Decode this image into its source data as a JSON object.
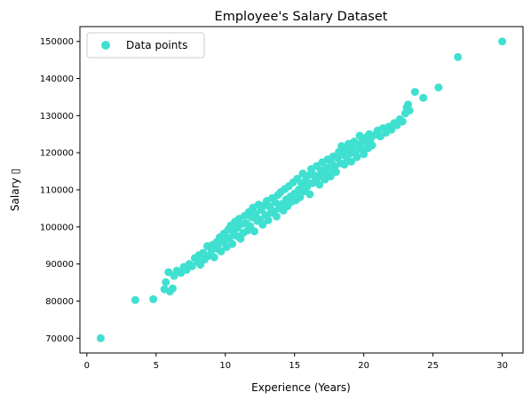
{
  "chart_data": {
    "type": "scatter",
    "title": "Employee's Salary Dataset",
    "xlabel": "Experience (Years)",
    "ylabel": "Salary ▯",
    "xlim": [
      -0.5,
      31.5
    ],
    "ylim": [
      66000,
      154000
    ],
    "xticks": [
      0,
      5,
      10,
      15,
      20,
      25,
      30
    ],
    "yticks": [
      70000,
      80000,
      90000,
      100000,
      110000,
      120000,
      130000,
      140000,
      150000
    ],
    "grid": false,
    "legend_position": "top-left",
    "series": [
      {
        "name": "Data points",
        "color": "#40e0d0",
        "marker": "circle",
        "points": [
          [
            1,
            70000
          ],
          [
            3.5,
            80300
          ],
          [
            4.8,
            80500
          ],
          [
            5.6,
            83200
          ],
          [
            5.7,
            85100
          ],
          [
            5.9,
            87800
          ],
          [
            6.0,
            82600
          ],
          [
            6.2,
            83400
          ],
          [
            6.3,
            86800
          ],
          [
            6.5,
            88200
          ],
          [
            6.8,
            87600
          ],
          [
            7.0,
            89200
          ],
          [
            7.2,
            88400
          ],
          [
            7.4,
            90000
          ],
          [
            7.6,
            89400
          ],
          [
            7.8,
            91600
          ],
          [
            8.0,
            90600
          ],
          [
            8.1,
            92400
          ],
          [
            8.2,
            89800
          ],
          [
            8.4,
            93000
          ],
          [
            8.5,
            91200
          ],
          [
            8.7,
            94800
          ],
          [
            8.8,
            92200
          ],
          [
            9.0,
            93600
          ],
          [
            9.1,
            95200
          ],
          [
            9.2,
            91800
          ],
          [
            9.4,
            96000
          ],
          [
            9.5,
            94000
          ],
          [
            9.6,
            97200
          ],
          [
            9.7,
            93400
          ],
          [
            9.8,
            95800
          ],
          [
            9.9,
            98200
          ],
          [
            10.0,
            96600
          ],
          [
            10.1,
            94600
          ],
          [
            10.2,
            99200
          ],
          [
            10.3,
            97000
          ],
          [
            10.4,
            100400
          ],
          [
            10.5,
            95400
          ],
          [
            10.6,
            98600
          ],
          [
            10.7,
            101400
          ],
          [
            10.8,
            97600
          ],
          [
            10.9,
            99800
          ],
          [
            11.0,
            102200
          ],
          [
            11.1,
            96800
          ],
          [
            11.2,
            100800
          ],
          [
            11.3,
            98400
          ],
          [
            11.4,
            103000
          ],
          [
            11.5,
            101000
          ],
          [
            11.6,
            99000
          ],
          [
            11.7,
            104000
          ],
          [
            11.8,
            100200
          ],
          [
            11.9,
            102600
          ],
          [
            12.0,
            105200
          ],
          [
            12.1,
            98800
          ],
          [
            12.2,
            103600
          ],
          [
            12.3,
            101600
          ],
          [
            12.4,
            106000
          ],
          [
            12.5,
            102000
          ],
          [
            12.6,
            104600
          ],
          [
            12.7,
            100600
          ],
          [
            12.8,
            105800
          ],
          [
            12.9,
            103200
          ],
          [
            13.0,
            107000
          ],
          [
            13.1,
            101800
          ],
          [
            13.2,
            105400
          ],
          [
            13.3,
            103800
          ],
          [
            13.4,
            107800
          ],
          [
            13.5,
            104200
          ],
          [
            13.6,
            106600
          ],
          [
            13.7,
            102800
          ],
          [
            13.8,
            108600
          ],
          [
            13.9,
            105000
          ],
          [
            14.0,
            109400
          ],
          [
            14.1,
            106200
          ],
          [
            14.2,
            104400
          ],
          [
            14.3,
            110200
          ],
          [
            14.4,
            107400
          ],
          [
            14.5,
            105600
          ],
          [
            14.6,
            111000
          ],
          [
            14.7,
            108200
          ],
          [
            14.8,
            106800
          ],
          [
            14.9,
            112000
          ],
          [
            15.0,
            109000
          ],
          [
            15.1,
            107200
          ],
          [
            15.2,
            113000
          ],
          [
            15.3,
            110000
          ],
          [
            15.4,
            108000
          ],
          [
            15.5,
            111600
          ],
          [
            15.6,
            114400
          ],
          [
            15.7,
            109600
          ],
          [
            15.8,
            112600
          ],
          [
            15.9,
            110800
          ],
          [
            16.0,
            113800
          ],
          [
            16.1,
            108800
          ],
          [
            16.2,
            115600
          ],
          [
            16.3,
            111800
          ],
          [
            16.4,
            114000
          ],
          [
            16.5,
            112400
          ],
          [
            16.6,
            116400
          ],
          [
            16.7,
            113400
          ],
          [
            16.8,
            111400
          ],
          [
            16.9,
            115200
          ],
          [
            17.0,
            117400
          ],
          [
            17.1,
            114600
          ],
          [
            17.2,
            112800
          ],
          [
            17.3,
            116000
          ],
          [
            17.4,
            118200
          ],
          [
            17.5,
            115000
          ],
          [
            17.6,
            113600
          ],
          [
            17.7,
            117000
          ],
          [
            17.8,
            119000
          ],
          [
            17.9,
            116200
          ],
          [
            18.0,
            114800
          ],
          [
            18.1,
            118600
          ],
          [
            18.2,
            120200
          ],
          [
            18.3,
            117200
          ],
          [
            18.4,
            121800
          ],
          [
            18.5,
            119400
          ],
          [
            18.6,
            116800
          ],
          [
            18.7,
            120600
          ],
          [
            18.8,
            118000
          ],
          [
            18.9,
            122400
          ],
          [
            19.0,
            119800
          ],
          [
            19.1,
            117600
          ],
          [
            19.2,
            121400
          ],
          [
            19.3,
            123000
          ],
          [
            19.4,
            120000
          ],
          [
            19.5,
            118800
          ],
          [
            19.6,
            122200
          ],
          [
            19.7,
            124600
          ],
          [
            19.8,
            121000
          ],
          [
            19.9,
            123400
          ],
          [
            20.0,
            119600
          ],
          [
            20.1,
            122800
          ],
          [
            20.2,
            124200
          ],
          [
            20.3,
            121200
          ],
          [
            20.4,
            125000
          ],
          [
            20.5,
            123800
          ],
          [
            20.6,
            122000
          ],
          [
            20.8,
            124800
          ],
          [
            21.0,
            126000
          ],
          [
            21.2,
            124400
          ],
          [
            21.4,
            126600
          ],
          [
            21.6,
            125400
          ],
          [
            21.8,
            127000
          ],
          [
            22.0,
            126200
          ],
          [
            22.2,
            128000
          ],
          [
            22.4,
            127400
          ],
          [
            22.6,
            129000
          ],
          [
            22.8,
            128400
          ],
          [
            23.0,
            130600
          ],
          [
            23.1,
            132200
          ],
          [
            23.2,
            133000
          ],
          [
            23.3,
            131400
          ],
          [
            23.7,
            136400
          ],
          [
            24.3,
            134800
          ],
          [
            25.4,
            137600
          ],
          [
            26.8,
            145800
          ],
          [
            30.0,
            150000
          ]
        ]
      }
    ]
  }
}
